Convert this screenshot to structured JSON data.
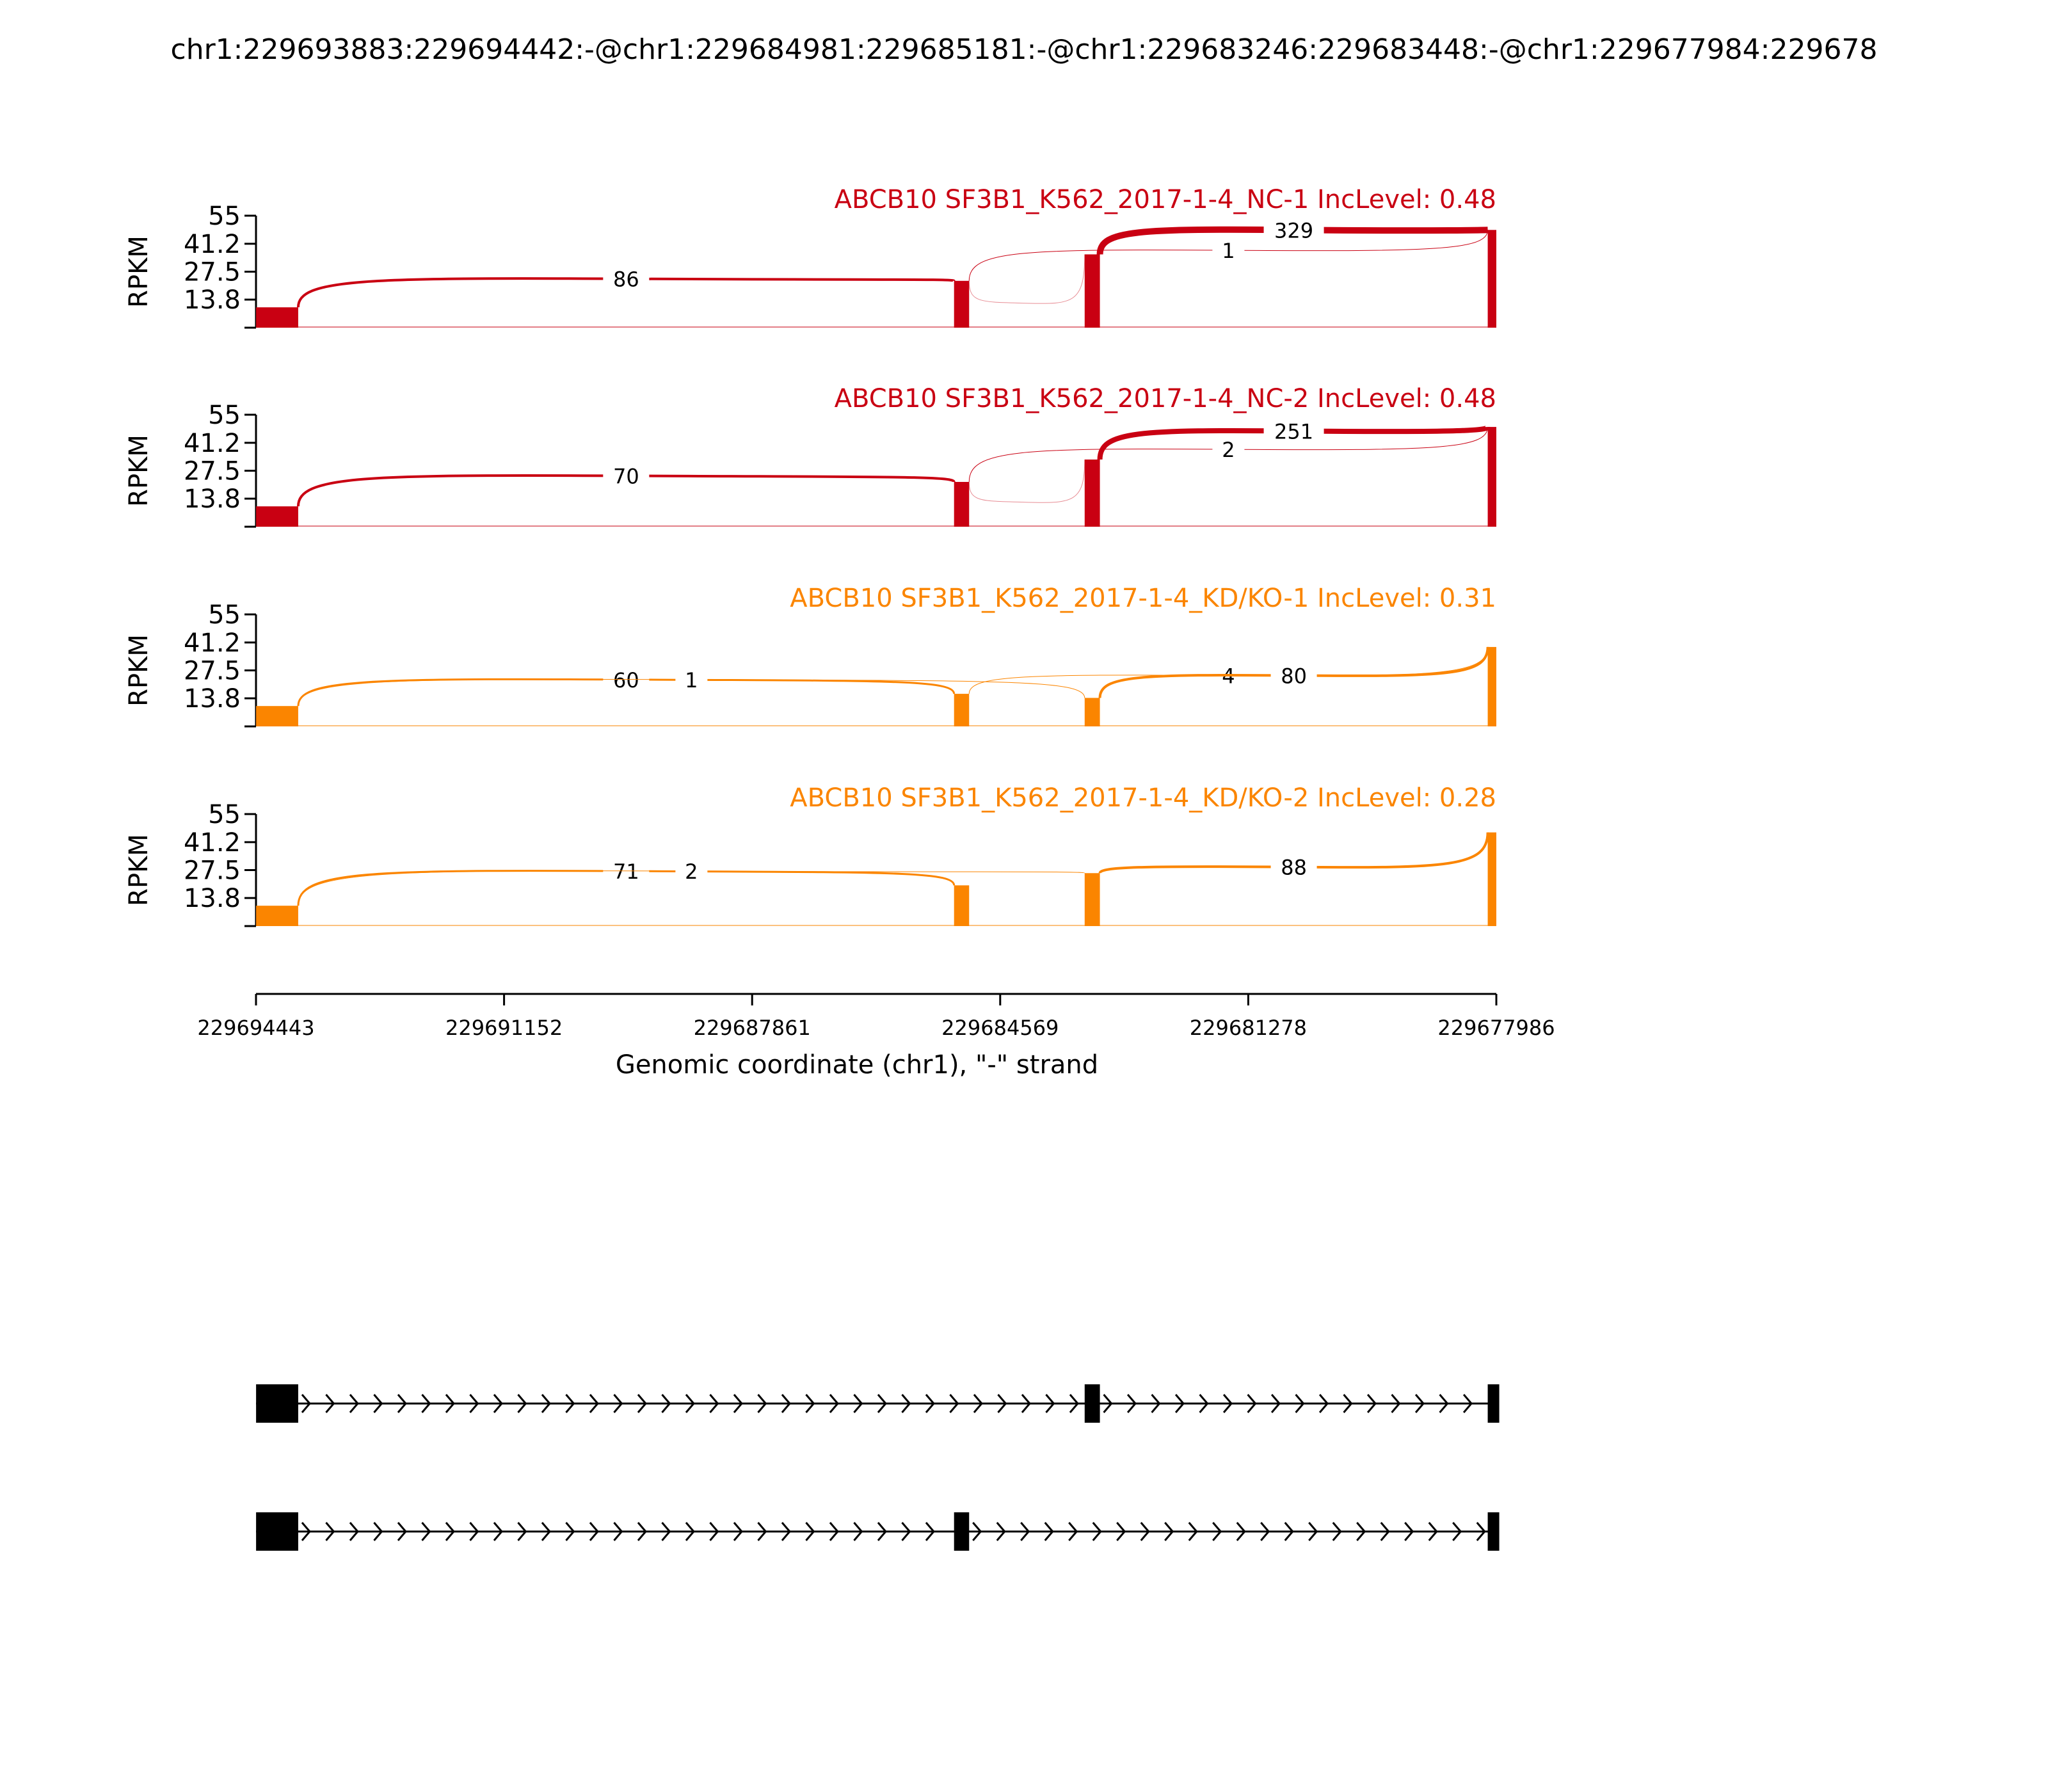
{
  "figure_title": "chr1:229693883:229694442:-@chr1:229684981:229685181:-@chr1:229683246:229683448:-@chr1:229677984:229678",
  "colors": {
    "control": "#c90012",
    "treatment": "#fb8500",
    "axis": "#000000",
    "gene_model": "#000000"
  },
  "chart_data": {
    "type": "sashimi",
    "chromosome": "chr1",
    "strand": "-",
    "x_range": [
      229694443,
      229677986
    ],
    "xticks": [
      "229694443",
      "229691152",
      "229687861",
      "229684569",
      "229681278",
      "229677986"
    ],
    "xlabel": "Genomic coordinate (chr1), \"-\" strand",
    "ylabel": "RPKM",
    "yticks": [
      "55",
      "41.2",
      "27.5",
      "13.8"
    ],
    "ylim": [
      0,
      55
    ],
    "exons": [
      {
        "id": "e1",
        "start": 229694442,
        "end": 229693883
      },
      {
        "id": "e2",
        "start": 229685181,
        "end": 229684981
      },
      {
        "id": "e3",
        "start": 229683448,
        "end": 229683246
      },
      {
        "id": "e4",
        "start": 229678100,
        "end": 229677986
      }
    ],
    "tracks": [
      {
        "title": "ABCB10 SF3B1_K562_2017-1-4_NC-1 IncLevel: 0.48",
        "group": "control",
        "coverage": {
          "e1": 10,
          "e2": 23,
          "e3": 36,
          "e4": 48
        },
        "junctions": [
          {
            "from": "e1",
            "to": "e2",
            "count": "86",
            "height": 24,
            "width": 4
          },
          {
            "from": "e2",
            "to": "e3",
            "count": "",
            "height": 12,
            "width": 1
          },
          {
            "from": "e2",
            "to": "e4",
            "count": "1",
            "height": 38,
            "width": 1
          },
          {
            "from": "e3",
            "to": "e4",
            "count": "329",
            "height": 48,
            "width": 10
          }
        ]
      },
      {
        "title": "ABCB10 SF3B1_K562_2017-1-4_NC-2 IncLevel: 0.48",
        "group": "control",
        "coverage": {
          "e1": 10,
          "e2": 22,
          "e3": 33,
          "e4": 49
        },
        "junctions": [
          {
            "from": "e1",
            "to": "e2",
            "count": "70",
            "height": 25,
            "width": 4
          },
          {
            "from": "e2",
            "to": "e3",
            "count": "",
            "height": 12,
            "width": 1
          },
          {
            "from": "e2",
            "to": "e4",
            "count": "2",
            "height": 38,
            "width": 1
          },
          {
            "from": "e3",
            "to": "e4",
            "count": "251",
            "height": 47,
            "width": 8
          }
        ]
      },
      {
        "title": "ABCB10 SF3B1_K562_2017-1-4_KD/KO-1 IncLevel: 0.31",
        "group": "treatment",
        "coverage": {
          "e1": 10,
          "e2": 16,
          "e3": 14,
          "e4": 39
        },
        "junctions": [
          {
            "from": "e1",
            "to": "e2",
            "count": "60",
            "height": 23,
            "width": 3
          },
          {
            "from": "e1",
            "to": "e3",
            "count": "1",
            "height": 23,
            "width": 1
          },
          {
            "from": "e2",
            "to": "e4",
            "count": "4",
            "height": 25,
            "width": 1
          },
          {
            "from": "e3",
            "to": "e4",
            "count": "80",
            "height": 25,
            "width": 4
          }
        ]
      },
      {
        "title": "ABCB10 SF3B1_K562_2017-1-4_KD/KO-2 IncLevel: 0.28",
        "group": "treatment",
        "coverage": {
          "e1": 10,
          "e2": 20,
          "e3": 26,
          "e4": 46
        },
        "junctions": [
          {
            "from": "e1",
            "to": "e2",
            "count": "71",
            "height": 27,
            "width": 3
          },
          {
            "from": "e1",
            "to": "e3",
            "count": "2",
            "height": 27,
            "width": 1
          },
          {
            "from": "e3",
            "to": "e4",
            "count": "88",
            "height": 29,
            "width": 4
          }
        ]
      }
    ],
    "isoforms": [
      {
        "exons": [
          "e1",
          "e3",
          "e4"
        ]
      },
      {
        "exons": [
          "e1",
          "e2",
          "e4"
        ]
      }
    ]
  }
}
